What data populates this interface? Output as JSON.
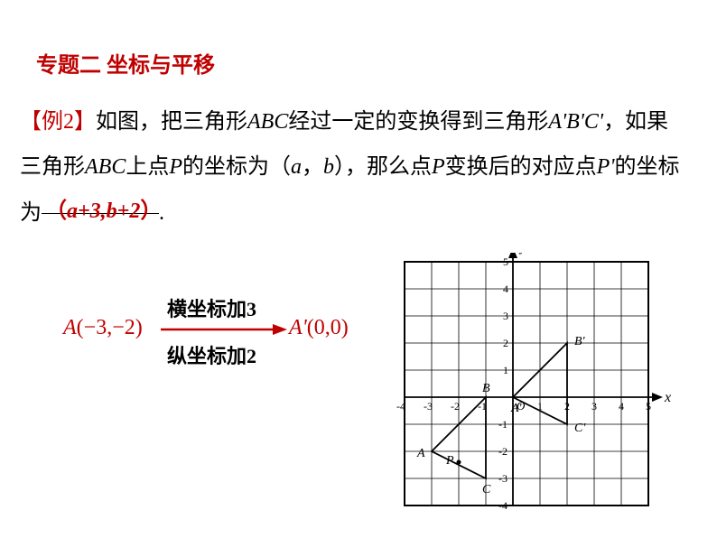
{
  "page": {
    "title": "专题二  坐标与平移",
    "example_label": "【例2】",
    "problem_text_1": "如图，把三角形",
    "tri_ABC": "ABC",
    "problem_text_2": "经过一定的变换得到三角形",
    "tri_ApBpCp": "A'B'C'",
    "problem_text_3": "，如果三角形",
    "problem_text_4": "上点",
    "pointP": "P",
    "problem_text_5": "的坐标为（",
    "var_a": "a",
    "comma": "，",
    "var_b": "b",
    "problem_text_6": "），那么点",
    "problem_text_7": "变换后的对应点",
    "pointPprime": "P'",
    "problem_text_8": "的坐标为",
    "answer_open": "（",
    "answer_body": "a+3,b+2",
    "answer_close": "）",
    "period": "."
  },
  "transform": {
    "pointA_label": "A",
    "pointA_coords": "(−3,−2)",
    "rule1": "横坐标加",
    "rule1_num": "3",
    "rule2": "纵坐标加",
    "rule2_num": "2",
    "pointAprime_label": "A'",
    "pointAprime_coords": "(0,0)"
  },
  "graph": {
    "xlim": [
      -4,
      5
    ],
    "ylim": [
      -4,
      5
    ],
    "cell": 30,
    "border_color": "#000000",
    "grid_color": "#000000",
    "axis_color": "#000000",
    "background": "#ffffff",
    "axis_labels": {
      "x": "x",
      "y": "y"
    },
    "x_ticks": [
      -4,
      -3,
      -2,
      -1,
      1,
      2,
      3,
      4,
      5
    ],
    "y_ticks": [
      -4,
      -3,
      -2,
      -1,
      1,
      2,
      3,
      4,
      5
    ],
    "tick_label_O": "O",
    "triangles": {
      "ABC": {
        "stroke": "#000000",
        "fill": "none",
        "points": {
          "A": [
            -3,
            -2
          ],
          "B": [
            -1,
            0
          ],
          "C": [
            -1,
            -3
          ]
        }
      },
      "ApBpCp": {
        "stroke": "#000000",
        "fill": "none",
        "points": {
          "A'": [
            0,
            0
          ],
          "B'": [
            2,
            2
          ],
          "C'": [
            2,
            -1
          ]
        }
      }
    },
    "extra_points": {
      "P": [
        -2,
        -2.4
      ]
    },
    "label_font": "italic 14px Times New Roman"
  }
}
